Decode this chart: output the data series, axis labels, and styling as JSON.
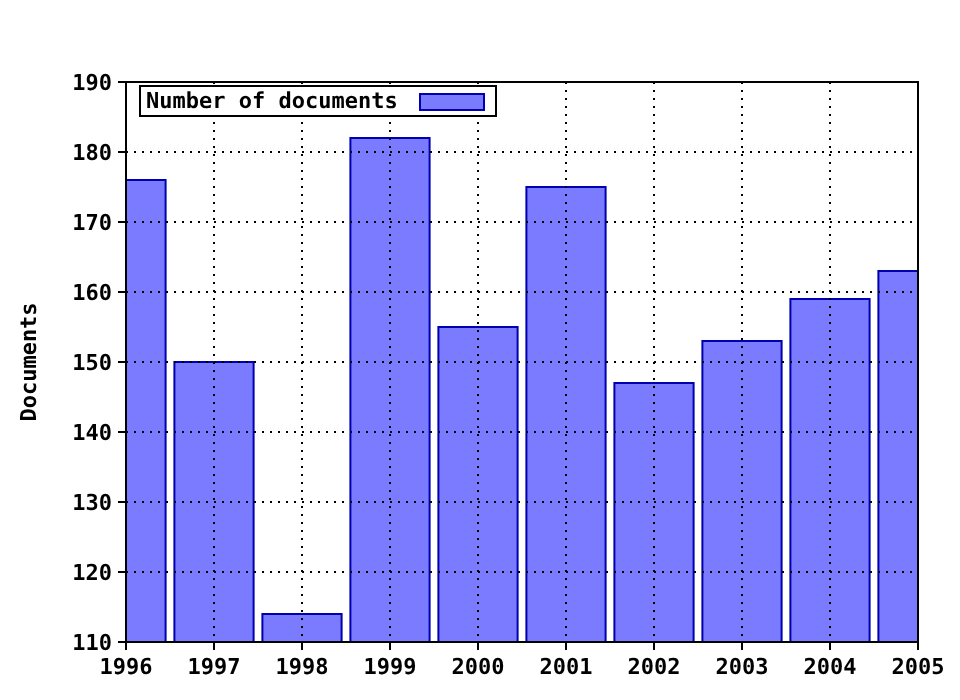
{
  "chart_data": {
    "type": "bar",
    "ylabel": "Documents",
    "x": [
      1996,
      1997,
      1998,
      1999,
      2000,
      2001,
      2002,
      2003,
      2004,
      2005
    ],
    "series": [
      {
        "name": "Number of documents",
        "color": "#7b7bff",
        "values": [
          176,
          150,
          114,
          182,
          155,
          175,
          147,
          153,
          159,
          163
        ]
      }
    ],
    "xlim": [
      1996,
      2005
    ],
    "xticks": [
      1996,
      1997,
      1998,
      1999,
      2000,
      2001,
      2002,
      2003,
      2004,
      2005
    ],
    "ylim": [
      110,
      190
    ],
    "yticks": [
      110,
      120,
      130,
      140,
      150,
      160,
      170,
      180,
      190
    ],
    "grid": true,
    "legend": "top left"
  }
}
